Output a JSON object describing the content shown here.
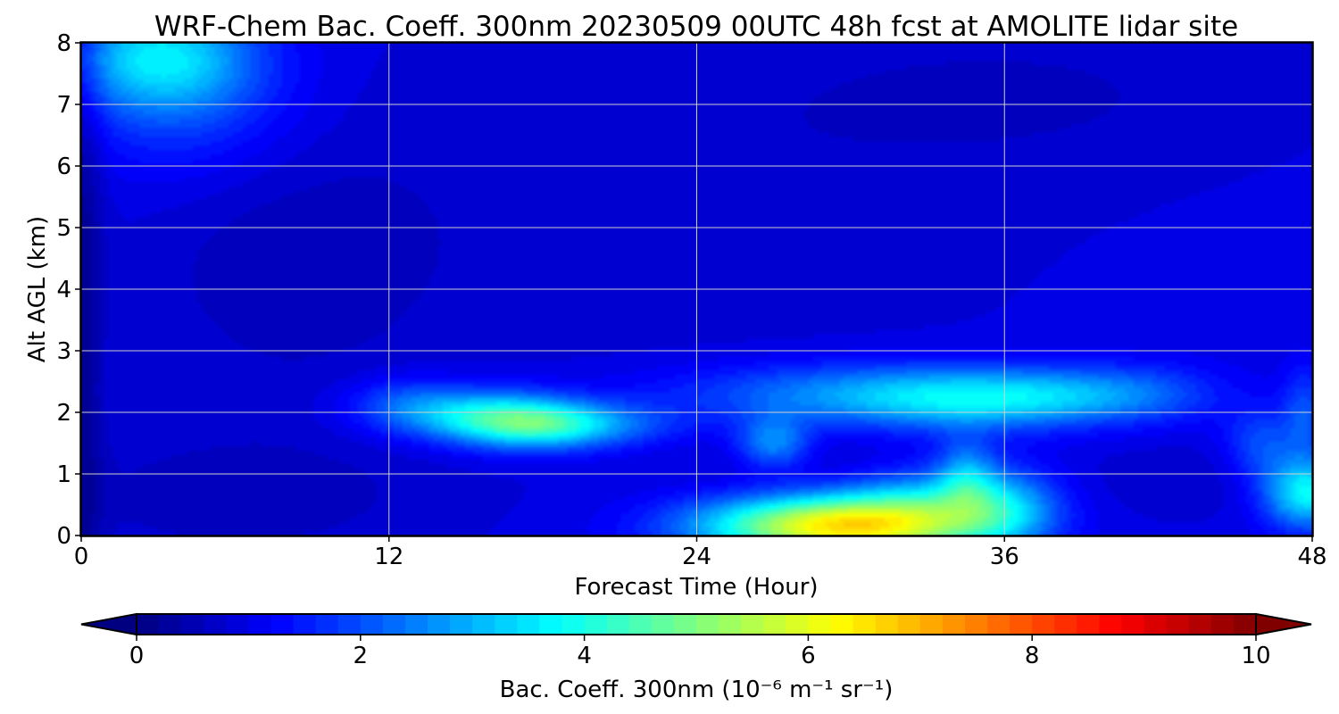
{
  "chart_data": {
    "type": "heatmap",
    "title": "WRF-Chem Bac. Coeff. 300nm  20230509 00UTC 48h fcst at AMOLITE lidar site",
    "xlabel": "Forecast Time (Hour)",
    "ylabel": "Alt AGL (km)",
    "xlim": [
      0,
      48
    ],
    "ylim": [
      0,
      8
    ],
    "xticks": [
      0,
      12,
      24,
      36,
      48
    ],
    "yticks": [
      0,
      1,
      2,
      3,
      4,
      5,
      6,
      7,
      8
    ],
    "grid": true,
    "colormap": "jet",
    "background_value": 1.0,
    "features": [
      {
        "x": 0,
        "y": 4,
        "sx": 0.6,
        "sy": 5,
        "amp": -0.75
      },
      {
        "x": 8,
        "y": 4.3,
        "sx": 4,
        "sy": 1.5,
        "amp": -0.35
      },
      {
        "x": 6,
        "y": 0.6,
        "sx": 6,
        "sy": 0.8,
        "amp": -0.4
      },
      {
        "x": 22,
        "y": 5.5,
        "sx": 12,
        "sy": 2.5,
        "amp": -0.25
      },
      {
        "x": 38,
        "y": 7.2,
        "sx": 8,
        "sy": 1,
        "amp": -0.25
      },
      {
        "x": 30,
        "y": 1.1,
        "sx": 4,
        "sy": 0.35,
        "amp": -0.3
      },
      {
        "x": 43,
        "y": 0.9,
        "sx": 3,
        "sy": 0.5,
        "amp": -0.25
      },
      {
        "x": 3,
        "y": 7.8,
        "sx": 2.5,
        "sy": 0.6,
        "amp": 2.1
      },
      {
        "x": 4,
        "y": 7.1,
        "sx": 3,
        "sy": 0.9,
        "amp": 0.9
      },
      {
        "x": 15,
        "y": 2.0,
        "sx": 2.5,
        "sy": 0.3,
        "amp": 1.8
      },
      {
        "x": 17.5,
        "y": 1.8,
        "sx": 2.2,
        "sy": 0.28,
        "amp": 2.6
      },
      {
        "x": 20,
        "y": 1.8,
        "sx": 2.5,
        "sy": 0.25,
        "amp": 1.0
      },
      {
        "x": 12.5,
        "y": 2.2,
        "sx": 1.5,
        "sy": 0.3,
        "amp": 0.6
      },
      {
        "x": 27,
        "y": 1.5,
        "sx": 1.0,
        "sy": 0.3,
        "amp": 1.7
      },
      {
        "x": 30,
        "y": 2.3,
        "sx": 5,
        "sy": 0.35,
        "amp": 1.5
      },
      {
        "x": 35,
        "y": 2.2,
        "sx": 3.5,
        "sy": 0.35,
        "amp": 1.8
      },
      {
        "x": 39,
        "y": 2.3,
        "sx": 2.5,
        "sy": 0.3,
        "amp": 0.9
      },
      {
        "x": 42,
        "y": 2.3,
        "sx": 2,
        "sy": 0.35,
        "amp": 0.6
      },
      {
        "x": 29,
        "y": 0.15,
        "sx": 3.5,
        "sy": 0.35,
        "amp": 5.0
      },
      {
        "x": 33,
        "y": 0.4,
        "sx": 2.5,
        "sy": 0.5,
        "amp": 2.2
      },
      {
        "x": 36,
        "y": 0.45,
        "sx": 1.5,
        "sy": 0.45,
        "amp": 1.6
      },
      {
        "x": 34.5,
        "y": 1.0,
        "sx": 0.8,
        "sy": 0.4,
        "amp": 1.4
      },
      {
        "x": 47.8,
        "y": 0.7,
        "sx": 1.2,
        "sy": 0.4,
        "amp": 2.8
      },
      {
        "x": 46,
        "y": 1.5,
        "sx": 1.0,
        "sy": 0.4,
        "amp": 1.0
      },
      {
        "x": 47.7,
        "y": 2.0,
        "sx": 0.6,
        "sy": 0.5,
        "amp": 1.0
      }
    ],
    "colorbar": {
      "label": "Bac. Coeff. 300nm  (10⁻⁶ m⁻¹ sr⁻¹)",
      "min": 0,
      "max": 10,
      "ticks": [
        0,
        2,
        4,
        6,
        8,
        10
      ],
      "extend": "both"
    }
  }
}
